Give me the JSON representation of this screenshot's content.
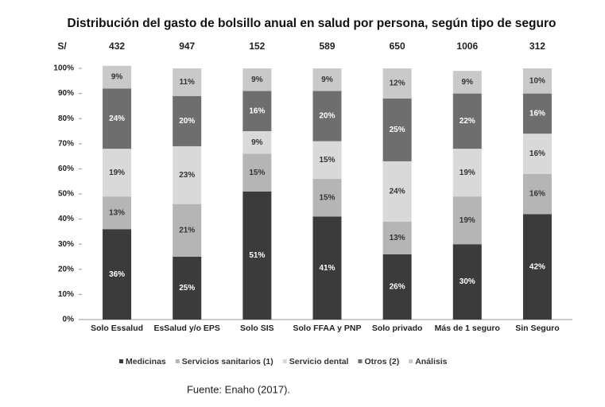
{
  "chart_data": {
    "type": "stacked_bar_100",
    "title": "Distribución del gasto de bolsillo anual en salud por persona, según tipo de seguro",
    "spending_label": "S/",
    "spending": [
      432,
      947,
      152,
      589,
      650,
      1006,
      312
    ],
    "categories": [
      "Solo Essalud",
      "EsSalud y/o EPS",
      "Solo SIS",
      "Solo FFAA y PNP",
      "Solo privado",
      "Más de 1 seguro",
      "Sin Seguro"
    ],
    "series": [
      {
        "name": "Medicinas",
        "color": "#3b3b3b",
        "values": [
          36,
          25,
          51,
          41,
          26,
          30,
          42
        ],
        "value_labels": [
          "36%",
          "25%",
          "51%",
          "41%",
          "26%",
          "30%",
          "42%"
        ]
      },
      {
        "name": "Servicios sanitarios (1)",
        "color": "#b5b5b5",
        "values": [
          13,
          21,
          15,
          15,
          13,
          19,
          16
        ],
        "value_labels": [
          "13%",
          "21%",
          "15%",
          "15%",
          "13%",
          "19%",
          "16%"
        ]
      },
      {
        "name": "Servicio dental",
        "color": "#d9d9d9",
        "values": [
          19,
          23,
          9,
          15,
          24,
          19,
          16
        ],
        "value_labels": [
          "19%",
          "23%",
          "9%",
          "15%",
          "24%",
          "19%",
          "16%"
        ]
      },
      {
        "name": "Otros (2)",
        "color": "#6e6e6e",
        "values": [
          24,
          20,
          16,
          20,
          25,
          22,
          16
        ],
        "value_labels": [
          "24%",
          "20%",
          "16%",
          "20%",
          "25%",
          "22%",
          "16%"
        ]
      },
      {
        "name": "Análisis",
        "color": "#c9c9c9",
        "values": [
          9,
          11,
          9,
          9,
          12,
          9,
          10
        ],
        "value_labels": [
          "9%",
          "11%",
          "9%",
          "9%",
          "12%",
          "9%",
          "10%"
        ]
      }
    ],
    "ylim": [
      0,
      100
    ],
    "yticks": [
      {
        "value": 0,
        "label": "0%"
      },
      {
        "value": 10,
        "label": "10%"
      },
      {
        "value": 20,
        "label": "20%"
      },
      {
        "value": 30,
        "label": "30%"
      },
      {
        "value": 40,
        "label": "40%"
      },
      {
        "value": 50,
        "label": "50%"
      },
      {
        "value": 60,
        "label": "60%"
      },
      {
        "value": 70,
        "label": "70%"
      },
      {
        "value": 80,
        "label": "80%"
      },
      {
        "value": 90,
        "label": "90%"
      },
      {
        "value": 100,
        "label": "100%"
      }
    ],
    "source": "Fuente: Enaho (2017)."
  }
}
